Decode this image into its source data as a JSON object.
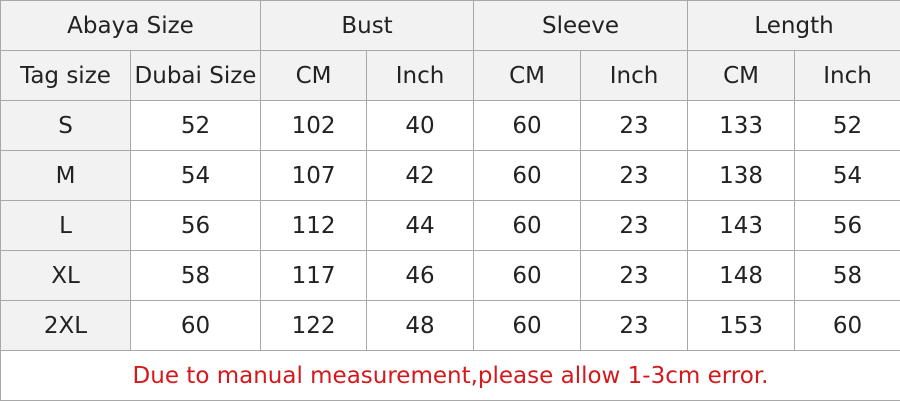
{
  "table": {
    "groups": [
      "Abaya Size",
      "Bust",
      "Sleeve",
      "Length"
    ],
    "columns": [
      "Tag size",
      "Dubai Size",
      "CM",
      "Inch",
      "CM",
      "Inch",
      "CM",
      "Inch"
    ],
    "rows": [
      [
        "S",
        "52",
        "102",
        "40",
        "60",
        "23",
        "133",
        "52"
      ],
      [
        "M",
        "54",
        "107",
        "42",
        "60",
        "23",
        "138",
        "54"
      ],
      [
        "L",
        "56",
        "112",
        "44",
        "60",
        "23",
        "143",
        "56"
      ],
      [
        "XL",
        "58",
        "117",
        "46",
        "60",
        "23",
        "148",
        "58"
      ],
      [
        "2XL",
        "60",
        "122",
        "48",
        "60",
        "23",
        "153",
        "60"
      ]
    ],
    "note": "Due to manual measurement,please allow 1-3cm error."
  },
  "colors": {
    "header_bg": "#f2f2f2",
    "note_text": "#d4191c",
    "border": "#a8a8a8"
  }
}
